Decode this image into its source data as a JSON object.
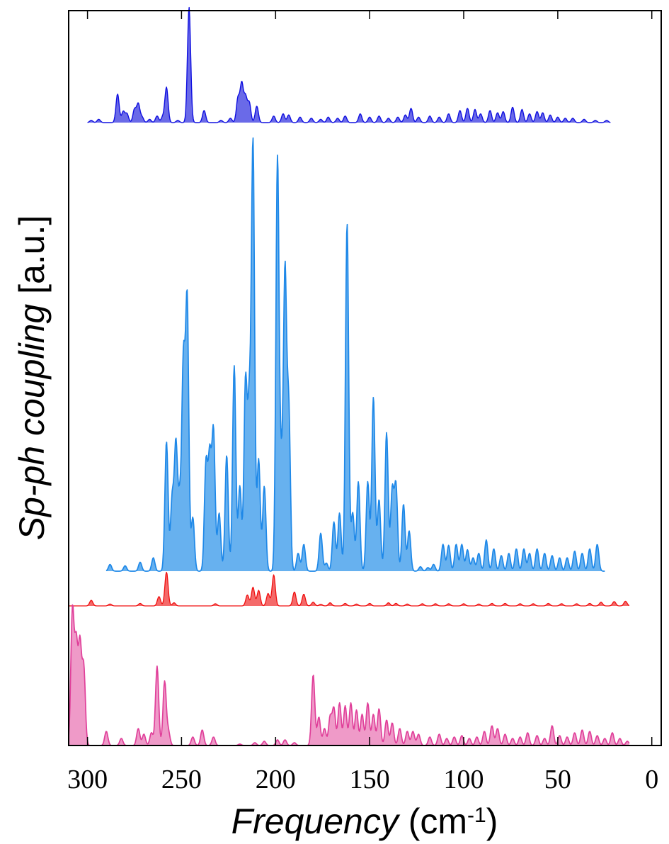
{
  "chart_data": {
    "type": "area",
    "xlabel": {
      "main": "Frequency",
      "unit_pre": " (cm",
      "unit_exp": "-1",
      "unit_post": ")"
    },
    "ylabel": {
      "main": "Sp-ph coupling",
      "unit": " [a.u.]"
    },
    "x_axis": {
      "range": [
        310,
        -5
      ],
      "reversed": true,
      "ticks": [
        300,
        250,
        200,
        150,
        100,
        50,
        0
      ],
      "tick_labels": [
        "300",
        "250",
        "200",
        "150",
        "100",
        "50",
        "0"
      ]
    },
    "y_axis": {
      "tick_labels_shown": false
    },
    "grid": false,
    "legend": "none",
    "series": [
      {
        "color": "#1010e0",
        "fill": "#6a6ae8",
        "x_range": [
          300,
          22
        ],
        "peaks": [
          [
            298,
            0.02
          ],
          [
            294,
            0.03
          ],
          [
            284,
            0.26
          ],
          [
            281,
            0.1
          ],
          [
            279,
            0.08
          ],
          [
            275,
            0.12
          ],
          [
            273,
            0.17
          ],
          [
            271,
            0.05
          ],
          [
            267,
            0.03
          ],
          [
            263,
            0.06
          ],
          [
            260,
            0.05
          ],
          [
            258,
            0.32
          ],
          [
            252,
            0.02
          ],
          [
            246,
            1.05
          ],
          [
            238,
            0.11
          ],
          [
            229,
            0.02
          ],
          [
            224,
            0.04
          ],
          [
            220,
            0.22
          ],
          [
            218,
            0.35
          ],
          [
            216,
            0.23
          ],
          [
            214,
            0.18
          ],
          [
            210,
            0.15
          ],
          [
            201,
            0.06
          ],
          [
            196,
            0.08
          ],
          [
            193,
            0.07
          ],
          [
            187,
            0.05
          ],
          [
            181,
            0.04
          ],
          [
            176,
            0.03
          ],
          [
            172,
            0.05
          ],
          [
            167,
            0.04
          ],
          [
            163,
            0.06
          ],
          [
            155,
            0.08
          ],
          [
            150,
            0.05
          ],
          [
            145,
            0.06
          ],
          [
            140,
            0.04
          ],
          [
            135,
            0.05
          ],
          [
            131,
            0.07
          ],
          [
            128,
            0.13
          ],
          [
            124,
            0.05
          ],
          [
            118,
            0.06
          ],
          [
            113,
            0.05
          ],
          [
            108,
            0.08
          ],
          [
            102,
            0.11
          ],
          [
            98,
            0.13
          ],
          [
            94,
            0.12
          ],
          [
            91,
            0.08
          ],
          [
            86,
            0.11
          ],
          [
            82,
            0.09
          ],
          [
            79,
            0.1
          ],
          [
            74,
            0.14
          ],
          [
            69,
            0.12
          ],
          [
            65,
            0.08
          ],
          [
            61,
            0.1
          ],
          [
            58,
            0.09
          ],
          [
            54,
            0.07
          ],
          [
            50,
            0.05
          ],
          [
            46,
            0.04
          ],
          [
            42,
            0.04
          ],
          [
            36,
            0.03
          ],
          [
            30,
            0.02
          ],
          [
            24,
            0.02
          ]
        ]
      },
      {
        "color": "#1e88e8",
        "fill": "#67b1ef",
        "x_range": [
          290,
          25
        ],
        "peaks": [
          [
            288,
            0.015
          ],
          [
            280,
            0.012
          ],
          [
            272,
            0.02
          ],
          [
            265,
            0.03
          ],
          [
            258,
            0.29
          ],
          [
            255,
            0.16
          ],
          [
            253,
            0.28
          ],
          [
            251,
            0.15
          ],
          [
            249,
            0.46
          ],
          [
            247,
            0.6
          ],
          [
            244,
            0.12
          ],
          [
            237,
            0.24
          ],
          [
            235,
            0.25
          ],
          [
            233,
            0.31
          ],
          [
            230,
            0.13
          ],
          [
            226,
            0.26
          ],
          [
            222,
            0.46
          ],
          [
            219,
            0.19
          ],
          [
            216,
            0.42
          ],
          [
            214,
            0.35
          ],
          [
            212,
            0.95
          ],
          [
            209,
            0.25
          ],
          [
            206,
            0.19
          ],
          [
            199,
            0.92
          ],
          [
            197,
            0.2
          ],
          [
            195,
            0.66
          ],
          [
            193,
            0.36
          ],
          [
            188,
            0.04
          ],
          [
            185,
            0.06
          ],
          [
            176,
            0.085
          ],
          [
            173,
            0.018
          ],
          [
            169,
            0.11
          ],
          [
            166,
            0.13
          ],
          [
            162,
            0.78
          ],
          [
            159,
            0.13
          ],
          [
            156,
            0.2
          ],
          [
            151,
            0.2
          ],
          [
            148,
            0.39
          ],
          [
            145,
            0.16
          ],
          [
            141,
            0.31
          ],
          [
            138,
            0.18
          ],
          [
            136,
            0.19
          ],
          [
            132,
            0.15
          ],
          [
            129,
            0.09
          ],
          [
            123,
            0.01
          ],
          [
            119,
            0.008
          ],
          [
            116,
            0.015
          ],
          [
            111,
            0.06
          ],
          [
            108,
            0.058
          ],
          [
            104,
            0.06
          ],
          [
            101,
            0.06
          ],
          [
            98,
            0.048
          ],
          [
            95,
            0.03
          ],
          [
            92,
            0.04
          ],
          [
            88,
            0.07
          ],
          [
            84,
            0.05
          ],
          [
            80,
            0.035
          ],
          [
            76,
            0.04
          ],
          [
            72,
            0.05
          ],
          [
            68,
            0.05
          ],
          [
            65,
            0.04
          ],
          [
            61,
            0.05
          ],
          [
            57,
            0.04
          ],
          [
            53,
            0.035
          ],
          [
            49,
            0.03
          ],
          [
            45,
            0.03
          ],
          [
            41,
            0.045
          ],
          [
            37,
            0.04
          ],
          [
            33,
            0.05
          ],
          [
            29,
            0.06
          ]
        ]
      },
      {
        "color": "#f01010",
        "fill": "#f46a6a",
        "x_range": [
          310,
          12
        ],
        "peaks": [
          [
            298,
            0.18
          ],
          [
            288,
            0.06
          ],
          [
            272,
            0.08
          ],
          [
            262,
            0.3
          ],
          [
            258,
            1.1
          ],
          [
            254,
            0.1
          ],
          [
            232,
            0.07
          ],
          [
            215,
            0.35
          ],
          [
            212,
            0.6
          ],
          [
            209,
            0.5
          ],
          [
            204,
            0.4
          ],
          [
            201,
            1.0
          ],
          [
            190,
            0.45
          ],
          [
            185,
            0.38
          ],
          [
            180,
            0.12
          ],
          [
            176,
            0.05
          ],
          [
            171,
            0.1
          ],
          [
            163,
            0.08
          ],
          [
            157,
            0.06
          ],
          [
            150,
            0.08
          ],
          [
            140,
            0.1
          ],
          [
            136,
            0.08
          ],
          [
            130,
            0.06
          ],
          [
            122,
            0.07
          ],
          [
            115,
            0.07
          ],
          [
            108,
            0.07
          ],
          [
            100,
            0.07
          ],
          [
            92,
            0.06
          ],
          [
            85,
            0.08
          ],
          [
            78,
            0.08
          ],
          [
            70,
            0.07
          ],
          [
            63,
            0.07
          ],
          [
            55,
            0.08
          ],
          [
            48,
            0.07
          ],
          [
            40,
            0.07
          ],
          [
            33,
            0.08
          ],
          [
            27,
            0.12
          ],
          [
            20,
            0.14
          ],
          [
            14,
            0.15
          ]
        ]
      },
      {
        "color": "#e0409a",
        "fill": "#ef9ac8",
        "x_range": [
          310,
          12
        ],
        "peaks": [
          [
            308,
            0.95
          ],
          [
            306,
            0.7
          ],
          [
            304,
            0.7
          ],
          [
            302,
            0.55
          ],
          [
            290,
            0.1
          ],
          [
            282,
            0.05
          ],
          [
            273,
            0.12
          ],
          [
            270,
            0.08
          ],
          [
            266,
            0.09
          ],
          [
            263,
            0.56
          ],
          [
            259,
            0.45
          ],
          [
            257,
            0.1
          ],
          [
            244,
            0.06
          ],
          [
            239,
            0.11
          ],
          [
            233,
            0.06
          ],
          [
            219,
            0.01
          ],
          [
            211,
            0.02
          ],
          [
            206,
            0.03
          ],
          [
            199,
            0.04
          ],
          [
            195,
            0.04
          ],
          [
            190,
            0.02
          ],
          [
            180,
            0.5
          ],
          [
            177,
            0.2
          ],
          [
            174,
            0.12
          ],
          [
            171,
            0.2
          ],
          [
            169,
            0.26
          ],
          [
            166,
            0.3
          ],
          [
            163,
            0.28
          ],
          [
            160,
            0.3
          ],
          [
            157,
            0.25
          ],
          [
            154,
            0.22
          ],
          [
            151,
            0.3
          ],
          [
            148,
            0.22
          ],
          [
            145,
            0.26
          ],
          [
            141,
            0.18
          ],
          [
            138,
            0.16
          ],
          [
            134,
            0.12
          ],
          [
            130,
            0.1
          ],
          [
            127,
            0.1
          ],
          [
            124,
            0.08
          ],
          [
            118,
            0.06
          ],
          [
            113,
            0.08
          ],
          [
            109,
            0.05
          ],
          [
            105,
            0.06
          ],
          [
            101,
            0.07
          ],
          [
            97,
            0.05
          ],
          [
            93,
            0.06
          ],
          [
            89,
            0.1
          ],
          [
            85,
            0.14
          ],
          [
            82,
            0.12
          ],
          [
            78,
            0.08
          ],
          [
            74,
            0.05
          ],
          [
            70,
            0.06
          ],
          [
            66,
            0.09
          ],
          [
            61,
            0.07
          ],
          [
            57,
            0.05
          ],
          [
            53,
            0.14
          ],
          [
            49,
            0.07
          ],
          [
            45,
            0.06
          ],
          [
            41,
            0.09
          ],
          [
            37,
            0.11
          ],
          [
            33,
            0.1
          ],
          [
            29,
            0.07
          ],
          [
            25,
            0.05
          ],
          [
            21,
            0.09
          ],
          [
            17,
            0.05
          ],
          [
            13,
            0.03
          ]
        ]
      }
    ]
  }
}
